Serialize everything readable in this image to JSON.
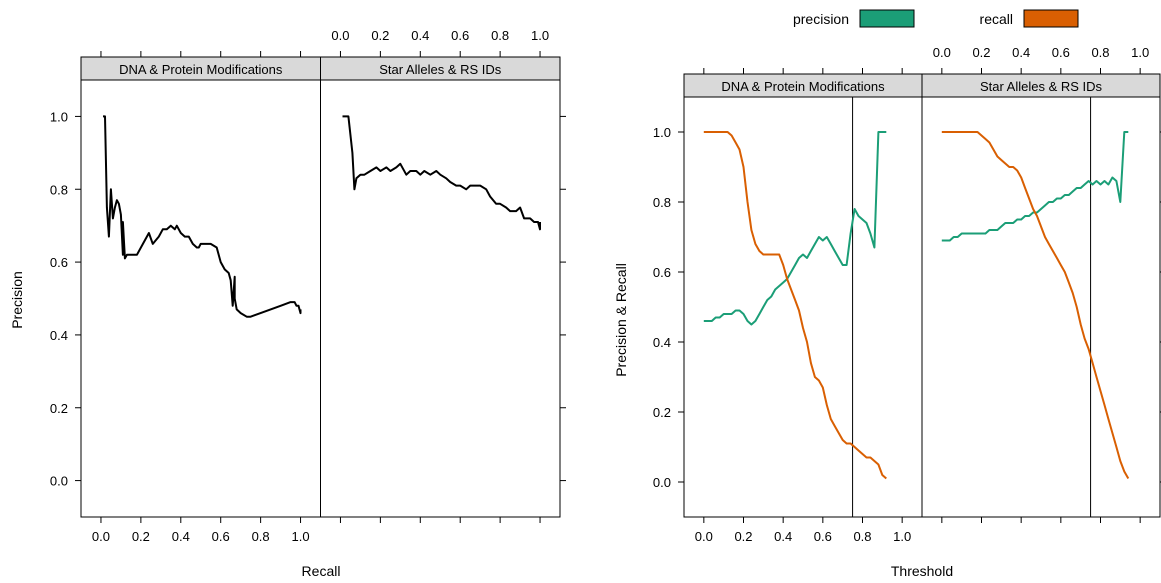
{
  "figure": {
    "left_panel": {
      "xlabel": "Recall",
      "ylabel": "Precision"
    },
    "right_panel": {
      "xlabel": "Threshold",
      "ylabel": "Precision & Recall"
    },
    "legend": [
      {
        "name": "precision",
        "color": "#1b9e77"
      },
      {
        "name": "recall",
        "color": "#d95f02"
      }
    ],
    "strips": [
      "DNA & Protein Modifications",
      "Star Alleles & RS IDs"
    ],
    "x_ticks": [
      "0.0",
      "0.2",
      "0.4",
      "0.6",
      "0.8",
      "1.0"
    ],
    "y_ticks": [
      "0.0",
      "0.2",
      "0.4",
      "0.6",
      "0.8",
      "1.0"
    ]
  },
  "chart_data": [
    {
      "type": "line",
      "title": "",
      "xlabel": "Recall",
      "ylabel": "Precision",
      "xlim": [
        -0.1,
        1.1
      ],
      "ylim": [
        -0.1,
        1.1
      ],
      "grid": false,
      "panels": [
        {
          "name": "DNA & Protein Modifications",
          "series": [
            {
              "color": "#000000",
              "x": [
                0.01,
                0.02,
                0.03,
                0.04,
                0.05,
                0.06,
                0.07,
                0.08,
                0.09,
                0.1,
                0.11,
                0.11,
                0.12,
                0.13,
                0.15,
                0.18,
                0.21,
                0.24,
                0.26,
                0.29,
                0.31,
                0.33,
                0.35,
                0.37,
                0.38,
                0.4,
                0.42,
                0.44,
                0.46,
                0.48,
                0.49,
                0.5,
                0.52,
                0.55,
                0.58,
                0.6,
                0.62,
                0.64,
                0.65,
                0.66,
                0.67,
                0.67,
                0.68,
                0.7,
                0.73,
                0.75,
                0.8,
                0.85,
                0.9,
                0.95,
                0.97,
                0.98,
                0.99,
                1.0,
                1.0
              ],
              "y": [
                1.0,
                1.0,
                0.75,
                0.67,
                0.8,
                0.72,
                0.75,
                0.77,
                0.76,
                0.73,
                0.62,
                0.71,
                0.61,
                0.62,
                0.62,
                0.62,
                0.65,
                0.68,
                0.65,
                0.67,
                0.69,
                0.69,
                0.7,
                0.69,
                0.7,
                0.68,
                0.67,
                0.67,
                0.65,
                0.64,
                0.64,
                0.65,
                0.65,
                0.65,
                0.64,
                0.6,
                0.58,
                0.57,
                0.55,
                0.48,
                0.56,
                0.5,
                0.47,
                0.46,
                0.45,
                0.45,
                0.46,
                0.47,
                0.48,
                0.49,
                0.49,
                0.48,
                0.48,
                0.46,
                0.47
              ]
            }
          ]
        },
        {
          "name": "Star Alleles & RS IDs",
          "series": [
            {
              "color": "#000000",
              "x": [
                0.01,
                0.03,
                0.04,
                0.06,
                0.07,
                0.08,
                0.1,
                0.12,
                0.15,
                0.18,
                0.2,
                0.23,
                0.25,
                0.28,
                0.3,
                0.33,
                0.35,
                0.38,
                0.4,
                0.42,
                0.45,
                0.48,
                0.5,
                0.53,
                0.55,
                0.58,
                0.6,
                0.63,
                0.65,
                0.68,
                0.7,
                0.73,
                0.75,
                0.78,
                0.8,
                0.83,
                0.85,
                0.88,
                0.9,
                0.92,
                0.95,
                0.97,
                0.99,
                1.0,
                1.0
              ],
              "y": [
                1.0,
                1.0,
                1.0,
                0.9,
                0.8,
                0.83,
                0.84,
                0.84,
                0.85,
                0.86,
                0.85,
                0.86,
                0.85,
                0.86,
                0.87,
                0.84,
                0.85,
                0.85,
                0.84,
                0.85,
                0.84,
                0.85,
                0.84,
                0.83,
                0.82,
                0.81,
                0.81,
                0.8,
                0.81,
                0.81,
                0.81,
                0.8,
                0.78,
                0.76,
                0.76,
                0.75,
                0.74,
                0.74,
                0.75,
                0.72,
                0.72,
                0.71,
                0.71,
                0.69,
                0.71
              ]
            }
          ]
        }
      ]
    },
    {
      "type": "line",
      "title": "",
      "xlabel": "Threshold",
      "ylabel": "Precision & Recall",
      "xlim": [
        -0.1,
        1.1
      ],
      "ylim": [
        -0.1,
        1.1
      ],
      "grid": false,
      "legend_position": "top",
      "panels": [
        {
          "name": "DNA & Protein Modifications",
          "vline": 0.75,
          "series": [
            {
              "name": "precision",
              "color": "#1b9e77",
              "x": [
                0.0,
                0.02,
                0.04,
                0.06,
                0.08,
                0.1,
                0.12,
                0.14,
                0.16,
                0.18,
                0.2,
                0.22,
                0.24,
                0.26,
                0.28,
                0.3,
                0.32,
                0.34,
                0.36,
                0.38,
                0.4,
                0.42,
                0.44,
                0.46,
                0.48,
                0.5,
                0.52,
                0.54,
                0.56,
                0.58,
                0.6,
                0.62,
                0.64,
                0.66,
                0.68,
                0.7,
                0.72,
                0.74,
                0.76,
                0.78,
                0.8,
                0.82,
                0.84,
                0.86,
                0.88,
                0.9,
                0.92
              ],
              "y": [
                0.46,
                0.46,
                0.46,
                0.47,
                0.47,
                0.48,
                0.48,
                0.48,
                0.49,
                0.49,
                0.48,
                0.46,
                0.45,
                0.46,
                0.48,
                0.5,
                0.52,
                0.53,
                0.55,
                0.56,
                0.57,
                0.58,
                0.6,
                0.62,
                0.64,
                0.65,
                0.64,
                0.66,
                0.68,
                0.7,
                0.69,
                0.7,
                0.68,
                0.66,
                0.64,
                0.62,
                0.62,
                0.71,
                0.78,
                0.76,
                0.75,
                0.74,
                0.71,
                0.67,
                1.0,
                1.0,
                1.0
              ]
            },
            {
              "name": "recall",
              "color": "#d95f02",
              "x": [
                0.0,
                0.02,
                0.04,
                0.06,
                0.08,
                0.1,
                0.12,
                0.14,
                0.16,
                0.18,
                0.2,
                0.22,
                0.24,
                0.26,
                0.28,
                0.3,
                0.32,
                0.34,
                0.36,
                0.38,
                0.4,
                0.42,
                0.44,
                0.46,
                0.48,
                0.5,
                0.52,
                0.54,
                0.56,
                0.58,
                0.6,
                0.62,
                0.64,
                0.66,
                0.68,
                0.7,
                0.72,
                0.74,
                0.76,
                0.78,
                0.8,
                0.82,
                0.84,
                0.86,
                0.88,
                0.9,
                0.92
              ],
              "y": [
                1.0,
                1.0,
                1.0,
                1.0,
                1.0,
                1.0,
                1.0,
                0.99,
                0.97,
                0.95,
                0.9,
                0.8,
                0.72,
                0.68,
                0.66,
                0.65,
                0.65,
                0.65,
                0.65,
                0.65,
                0.62,
                0.58,
                0.55,
                0.52,
                0.49,
                0.44,
                0.4,
                0.34,
                0.3,
                0.29,
                0.27,
                0.22,
                0.18,
                0.16,
                0.14,
                0.12,
                0.11,
                0.11,
                0.1,
                0.09,
                0.08,
                0.07,
                0.07,
                0.06,
                0.05,
                0.02,
                0.01
              ]
            }
          ]
        },
        {
          "name": "Star Alleles & RS IDs",
          "vline": 0.75,
          "series": [
            {
              "name": "precision",
              "color": "#1b9e77",
              "x": [
                0.0,
                0.02,
                0.04,
                0.06,
                0.08,
                0.1,
                0.12,
                0.14,
                0.16,
                0.18,
                0.2,
                0.22,
                0.24,
                0.26,
                0.28,
                0.3,
                0.32,
                0.34,
                0.36,
                0.38,
                0.4,
                0.42,
                0.44,
                0.46,
                0.48,
                0.5,
                0.52,
                0.54,
                0.56,
                0.58,
                0.6,
                0.62,
                0.64,
                0.66,
                0.68,
                0.7,
                0.72,
                0.74,
                0.76,
                0.78,
                0.8,
                0.82,
                0.84,
                0.86,
                0.88,
                0.9,
                0.92,
                0.94
              ],
              "y": [
                0.69,
                0.69,
                0.69,
                0.7,
                0.7,
                0.71,
                0.71,
                0.71,
                0.71,
                0.71,
                0.71,
                0.71,
                0.72,
                0.72,
                0.72,
                0.73,
                0.74,
                0.74,
                0.74,
                0.75,
                0.75,
                0.76,
                0.76,
                0.77,
                0.77,
                0.78,
                0.79,
                0.8,
                0.8,
                0.81,
                0.81,
                0.82,
                0.82,
                0.83,
                0.84,
                0.84,
                0.85,
                0.86,
                0.85,
                0.86,
                0.85,
                0.86,
                0.85,
                0.87,
                0.86,
                0.8,
                1.0,
                1.0
              ]
            },
            {
              "name": "recall",
              "color": "#d95f02",
              "x": [
                0.0,
                0.02,
                0.04,
                0.06,
                0.08,
                0.1,
                0.12,
                0.14,
                0.16,
                0.18,
                0.2,
                0.22,
                0.24,
                0.26,
                0.28,
                0.3,
                0.32,
                0.34,
                0.36,
                0.38,
                0.4,
                0.42,
                0.44,
                0.46,
                0.48,
                0.5,
                0.52,
                0.54,
                0.56,
                0.58,
                0.6,
                0.62,
                0.64,
                0.66,
                0.68,
                0.7,
                0.72,
                0.74,
                0.76,
                0.78,
                0.8,
                0.82,
                0.84,
                0.86,
                0.88,
                0.9,
                0.92,
                0.94
              ],
              "y": [
                1.0,
                1.0,
                1.0,
                1.0,
                1.0,
                1.0,
                1.0,
                1.0,
                1.0,
                1.0,
                0.99,
                0.98,
                0.97,
                0.95,
                0.93,
                0.92,
                0.91,
                0.9,
                0.9,
                0.89,
                0.87,
                0.84,
                0.81,
                0.78,
                0.76,
                0.73,
                0.7,
                0.68,
                0.66,
                0.64,
                0.62,
                0.6,
                0.57,
                0.54,
                0.5,
                0.45,
                0.41,
                0.38,
                0.34,
                0.3,
                0.26,
                0.22,
                0.18,
                0.14,
                0.1,
                0.06,
                0.03,
                0.01
              ]
            }
          ]
        }
      ]
    }
  ]
}
